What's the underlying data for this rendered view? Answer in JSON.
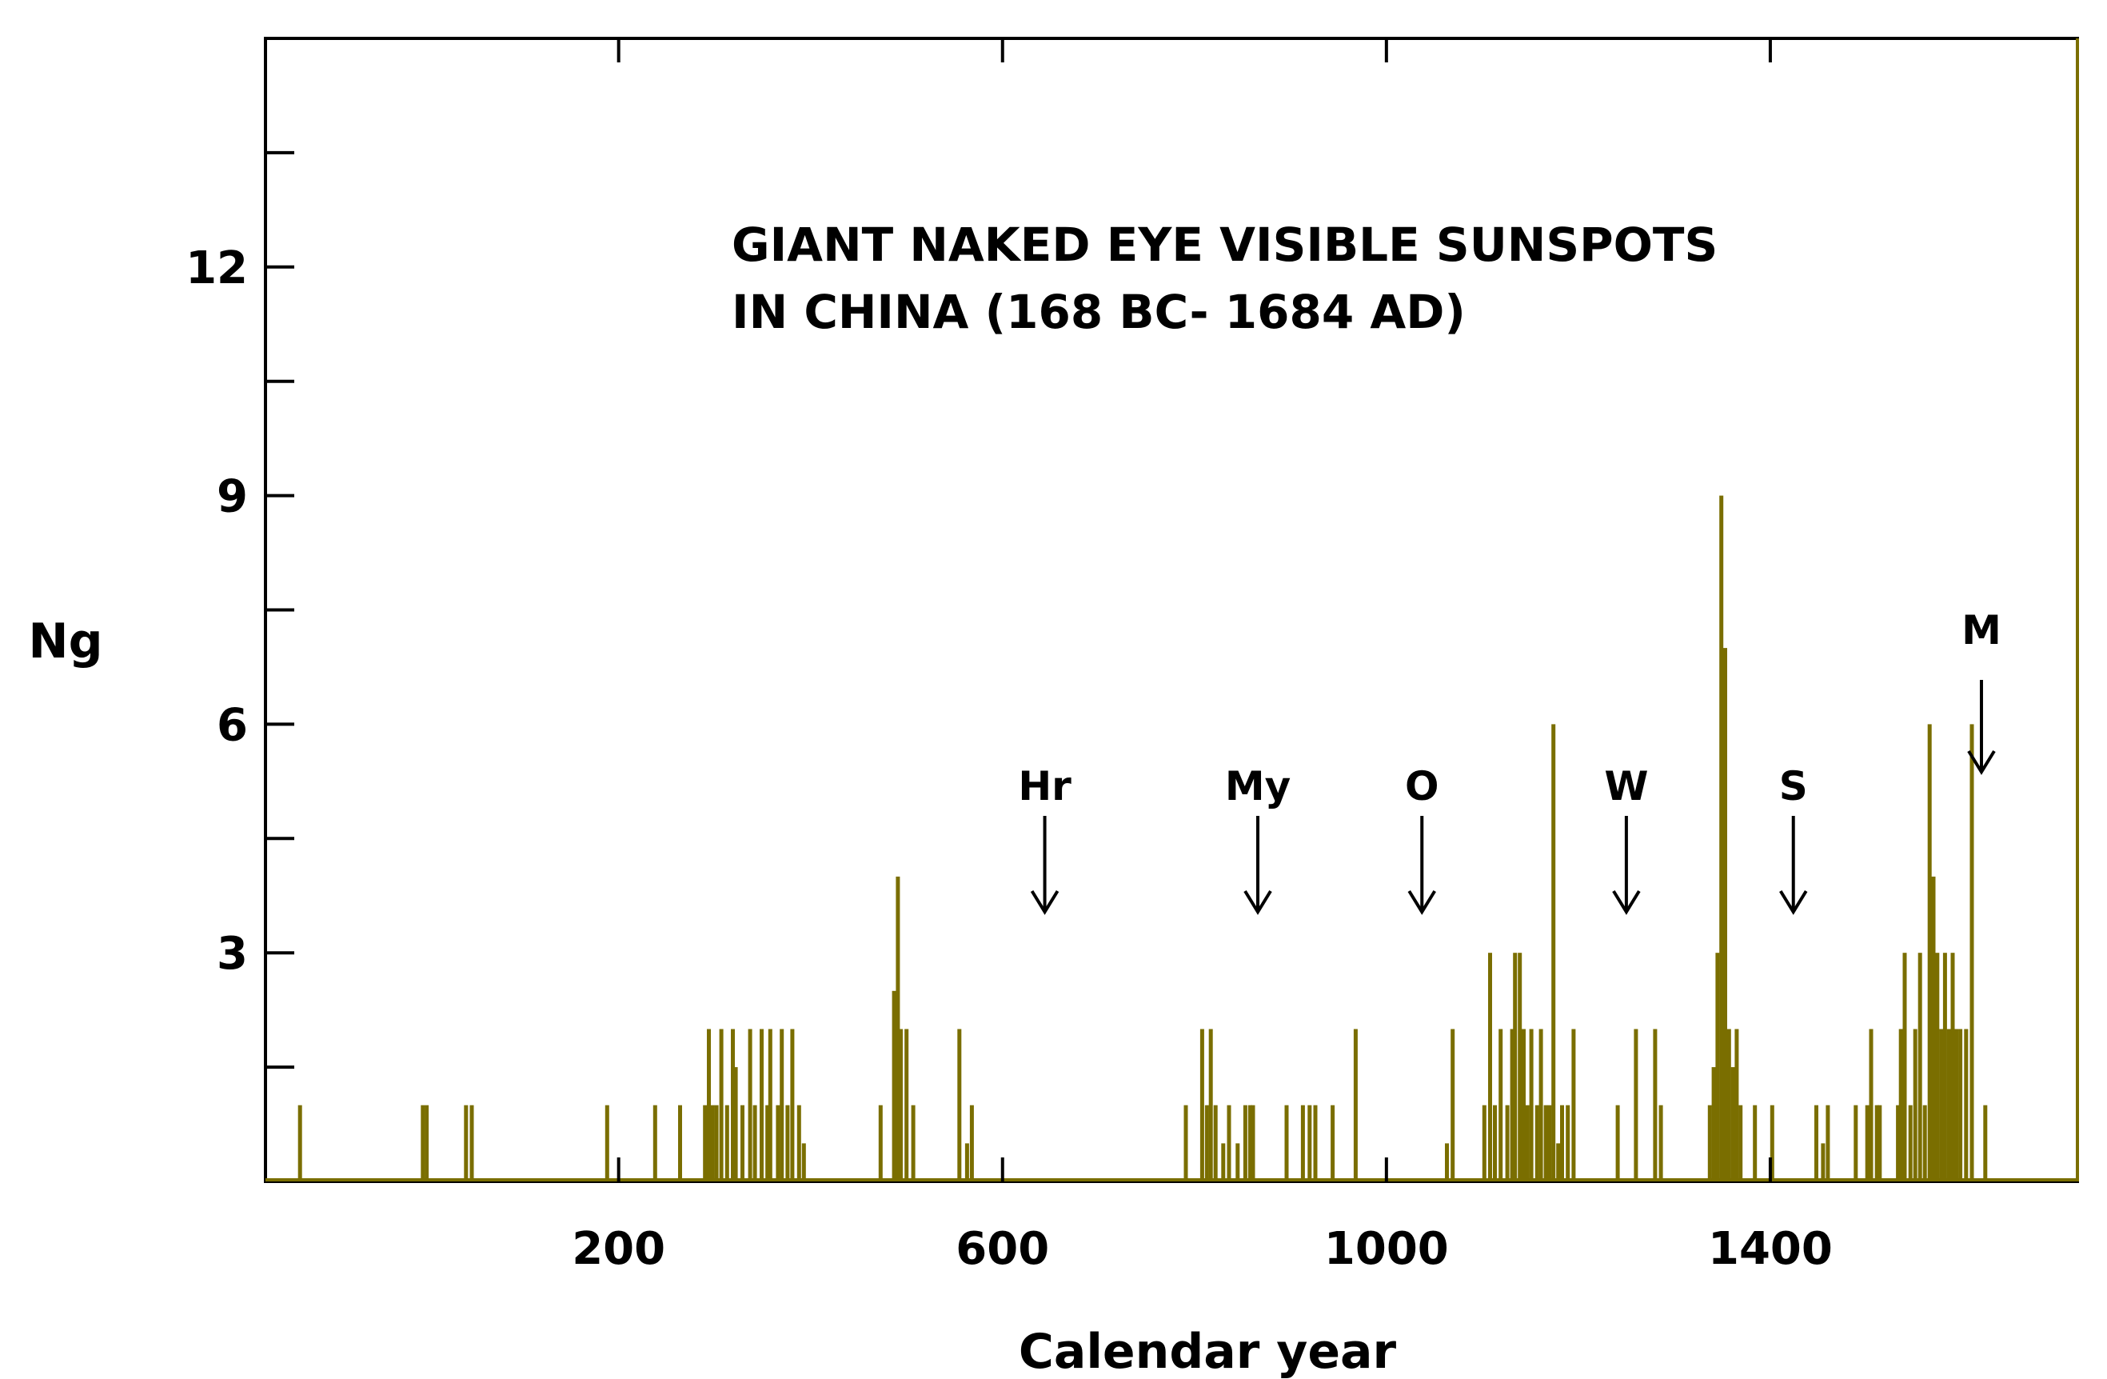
{
  "chart_data": {
    "type": "bar",
    "title_lines": [
      "GIANT NAKED EYE VISIBLE SUNSPOTS",
      "IN CHINA (168 BC- 1684 AD)"
    ],
    "xlabel": "Calendar  year",
    "ylabel": "Ng",
    "xlim": [
      -168,
      1720
    ],
    "ylim": [
      0,
      15
    ],
    "xticks": [
      200,
      600,
      1000,
      1400
    ],
    "xtick_labels": [
      "200",
      "600",
      "1000",
      "1400"
    ],
    "yticks": [
      3,
      6,
      9,
      12
    ],
    "yminor": [
      1.5,
      4.5,
      7.5,
      10.5,
      13.5
    ],
    "ytick_labels": [
      "3",
      "6",
      "9",
      "12"
    ],
    "grid": false,
    "bar_color": "#7a6e00",
    "annotations": [
      {
        "label": "Hr",
        "x": 644
      },
      {
        "label": "My",
        "x": 866
      },
      {
        "label": "O",
        "x": 1037
      },
      {
        "label": "W",
        "x": 1250
      },
      {
        "label": "S",
        "x": 1424
      },
      {
        "label": "M",
        "x": 1620
      }
    ],
    "series": [
      {
        "points": [
          [
            -132,
            1
          ],
          [
            -4,
            1
          ],
          [
            0,
            1
          ],
          [
            41,
            1
          ],
          [
            47,
            1
          ],
          [
            188,
            1
          ],
          [
            238,
            1
          ],
          [
            264,
            1
          ],
          [
            290,
            1
          ],
          [
            294,
            2
          ],
          [
            298,
            1
          ],
          [
            302,
            1
          ],
          [
            307,
            2
          ],
          [
            313,
            1
          ],
          [
            319,
            2
          ],
          [
            322,
            1.5
          ],
          [
            329,
            1
          ],
          [
            337,
            2
          ],
          [
            342,
            1
          ],
          [
            349,
            2
          ],
          [
            355,
            1
          ],
          [
            358,
            2
          ],
          [
            366,
            1
          ],
          [
            370,
            2
          ],
          [
            376,
            1
          ],
          [
            381,
            2
          ],
          [
            388,
            1
          ],
          [
            393,
            0.5
          ],
          [
            473,
            1
          ],
          [
            487,
            2.5
          ],
          [
            491,
            4
          ],
          [
            494,
            2
          ],
          [
            500,
            2
          ],
          [
            507,
            1
          ],
          [
            555,
            2
          ],
          [
            563,
            0.5
          ],
          [
            568,
            1
          ],
          [
            791,
            1
          ],
          [
            808,
            2
          ],
          [
            813,
            1
          ],
          [
            817,
            2
          ],
          [
            822,
            1
          ],
          [
            830,
            0.5
          ],
          [
            836,
            1
          ],
          [
            845,
            0.5
          ],
          [
            853,
            1
          ],
          [
            858,
            1
          ],
          [
            861,
            1
          ],
          [
            896,
            1
          ],
          [
            913,
            1
          ],
          [
            920,
            1
          ],
          [
            926,
            1
          ],
          [
            944,
            1
          ],
          [
            968,
            2
          ],
          [
            1063,
            0.5
          ],
          [
            1069,
            2
          ],
          [
            1102,
            1
          ],
          [
            1108,
            3
          ],
          [
            1113,
            1
          ],
          [
            1119,
            2
          ],
          [
            1126,
            1
          ],
          [
            1131,
            2
          ],
          [
            1134,
            3
          ],
          [
            1139,
            3
          ],
          [
            1143,
            2
          ],
          [
            1147,
            1
          ],
          [
            1151,
            2
          ],
          [
            1157,
            1
          ],
          [
            1161,
            2
          ],
          [
            1166,
            1
          ],
          [
            1170,
            1
          ],
          [
            1174,
            6
          ],
          [
            1179,
            0.5
          ],
          [
            1183,
            1
          ],
          [
            1189,
            1
          ],
          [
            1195,
            2
          ],
          [
            1241,
            1
          ],
          [
            1260,
            2
          ],
          [
            1280,
            2
          ],
          [
            1286,
            1
          ],
          [
            1337,
            1
          ],
          [
            1341,
            1.5
          ],
          [
            1345,
            3
          ],
          [
            1349,
            9
          ],
          [
            1353,
            7
          ],
          [
            1357,
            2
          ],
          [
            1361,
            1.5
          ],
          [
            1365,
            2
          ],
          [
            1369,
            1
          ],
          [
            1384,
            1
          ],
          [
            1402,
            1
          ],
          [
            1448,
            1
          ],
          [
            1455,
            0.5
          ],
          [
            1460,
            1
          ],
          [
            1489,
            1
          ],
          [
            1501,
            1
          ],
          [
            1505,
            2
          ],
          [
            1511,
            1
          ],
          [
            1514,
            1
          ],
          [
            1533,
            1
          ],
          [
            1536,
            2
          ],
          [
            1540,
            3
          ],
          [
            1546,
            1
          ],
          [
            1551,
            2
          ],
          [
            1556,
            3
          ],
          [
            1561,
            1
          ],
          [
            1566,
            6
          ],
          [
            1570,
            4
          ],
          [
            1574,
            3
          ],
          [
            1578,
            2
          ],
          [
            1582,
            3
          ],
          [
            1586,
            2
          ],
          [
            1590,
            3
          ],
          [
            1594,
            2
          ],
          [
            1598,
            2
          ],
          [
            1604,
            2
          ],
          [
            1610,
            6
          ],
          [
            1624,
            1
          ]
        ]
      }
    ]
  }
}
